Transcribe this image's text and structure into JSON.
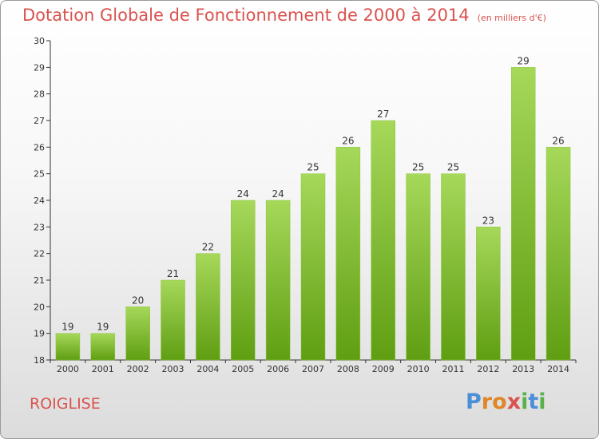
{
  "header": {
    "title": "Dotation Globale de Fonctionnement de 2000 à 2014",
    "unit": "(en milliers d'€)"
  },
  "footer": {
    "commune": "ROIGLISE",
    "brand_letters": [
      "P",
      "r",
      "o",
      "x",
      "i",
      "t",
      "i"
    ],
    "brand_colors": [
      "#4a8fd8",
      "#e0862b",
      "#e0862b",
      "#d9534f",
      "#58b24a",
      "#4a8fd8",
      "#58b24a"
    ]
  },
  "colors": {
    "accent": "#d9534f",
    "bar_top": "#a6d85a",
    "bar_bottom": "#5f9e12",
    "axis": "#333333"
  },
  "chart_data": {
    "type": "bar",
    "categories": [
      "2000",
      "2001",
      "2002",
      "2003",
      "2004",
      "2005",
      "2006",
      "2007",
      "2008",
      "2009",
      "2010",
      "2011",
      "2012",
      "2013",
      "2014"
    ],
    "values": [
      19,
      19,
      20,
      21,
      22,
      24,
      24,
      25,
      26,
      27,
      25,
      25,
      23,
      29,
      26
    ],
    "title": "Dotation Globale de Fonctionnement de 2000 à 2014",
    "ylim": [
      18,
      30
    ],
    "yticks": [
      18,
      19,
      20,
      21,
      22,
      23,
      24,
      25,
      26,
      27,
      28,
      29,
      30
    ],
    "grid": false,
    "data_labels": true
  }
}
